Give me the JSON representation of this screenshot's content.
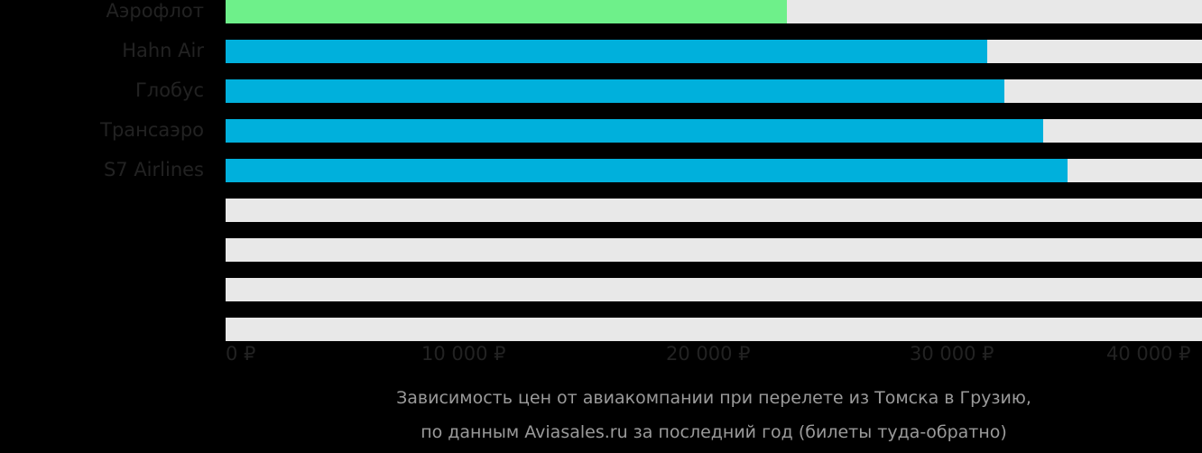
{
  "chart_data": {
    "type": "bar",
    "orientation": "horizontal",
    "title": "Зависимость цен от авиакомпании при перелете из Томска в Грузию, по данным Aviasales.ru за последний год (билеты туда-обратно)",
    "xlabel": "",
    "ylabel": "",
    "xlim": [
      0,
      40000
    ],
    "categories": [
      "Аэрофлот",
      "Hahn Air",
      "Глобус",
      "Трансаэро",
      "S7 Airlines",
      "",
      "",
      "",
      ""
    ],
    "values": [
      23000,
      31200,
      31900,
      33500,
      34500,
      null,
      null,
      null,
      null
    ],
    "colors": [
      "#6ef08a",
      "#00b0dc",
      "#00b0dc",
      "#00b0dc",
      "#00b0dc"
    ],
    "track_color": "#e8e8e8",
    "x_ticks": [
      "0 ₽",
      "10 000 ₽",
      "20 000 ₽",
      "30 000 ₽",
      "40 000 ₽"
    ],
    "grid": false,
    "legend": null
  },
  "caption": {
    "line1": "Зависимость цен от авиакомпании при перелете из Томска в Грузию,",
    "line2": "по данным Aviasales.ru за последний год (билеты туда-обратно)"
  }
}
